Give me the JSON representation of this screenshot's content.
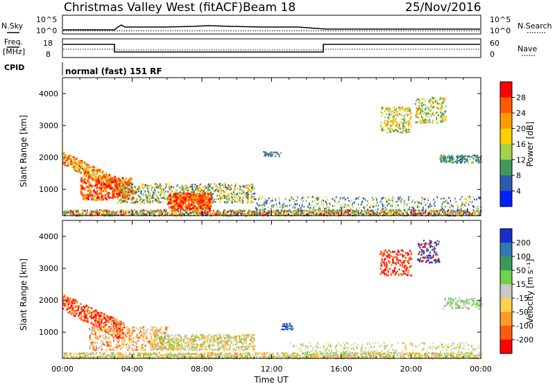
{
  "header": {
    "title": "Christmas Valley West (fitACF)",
    "beam": "Beam 18",
    "date": "25/Nov/2016"
  },
  "strips": {
    "nsky_label": "N.Sky",
    "nsearch_label": "N.Search",
    "nsky_ticks": [
      "10^5",
      "10^0"
    ],
    "nsearch_ticks": [
      "10^5",
      "10^0"
    ],
    "freq_label_line1": "Freq.",
    "freq_label_line2": "[MHz]",
    "freq_ticks": [
      "18",
      "8"
    ],
    "nave_label": "Nave",
    "nave_ticks": [
      "60",
      "0"
    ],
    "cpid_label": "CPID",
    "cpid_text": "normal (fast) 151 RF"
  },
  "chart_data": [
    {
      "type": "heatmap",
      "name": "power",
      "ylabel": "Slant Range [km]",
      "yticks": [
        "4000",
        "3000",
        "2000",
        "1000"
      ],
      "ylim": [
        180,
        4500
      ],
      "xlim_hours": [
        0,
        24
      ],
      "colorbar_label": "Power [dB]",
      "colorbar_ticks": [
        "28",
        "24",
        "20",
        "16",
        "12",
        "8",
        "4"
      ],
      "colorbar_colors": [
        "#ff0000",
        "#ff5a00",
        "#ff9a00",
        "#ffd000",
        "#a4d24c",
        "#3e9a5a",
        "#2e5cb0",
        "#0020ff"
      ]
    },
    {
      "type": "heatmap",
      "name": "velocity",
      "ylabel": "Slant Range [km]",
      "yticks": [
        "4000",
        "3000",
        "2000",
        "1000"
      ],
      "ylim": [
        180,
        4500
      ],
      "xlim_hours": [
        0,
        24
      ],
      "xlabel": "Time UT",
      "xticks": [
        "00:00",
        "04:00",
        "08:00",
        "12:00",
        "16:00",
        "20:00",
        "00:00"
      ],
      "colorbar_label": "Velocity [m s⁻¹]",
      "colorbar_ticks": [
        "200",
        "100",
        "50",
        "15",
        "-15",
        "-50",
        "-100",
        "-200"
      ],
      "colorbar_colors": [
        "#1a2fc8",
        "#2f7ab0",
        "#3a9a5a",
        "#6fd24a",
        "#c8c8c8",
        "#ffd04a",
        "#ff9a2a",
        "#ff5a14",
        "#ff0000"
      ]
    }
  ]
}
